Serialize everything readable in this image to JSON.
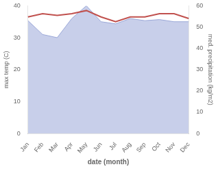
{
  "chart_data": {
    "type": "line",
    "categories": [
      "Jan",
      "Feb",
      "Mar",
      "Apr",
      "May",
      "Jun",
      "Jul",
      "Aug",
      "Sep",
      "Oct",
      "Nov",
      "Dec"
    ],
    "xlabel": "date (month)",
    "ylabel": "max temp (C)",
    "y2label": "med. precipitation (kg/m2)",
    "series": [
      {
        "type": "area",
        "color": "#9ba8d8",
        "axis": "y2",
        "values": [
          53.0,
          46.5,
          45.0,
          54.0,
          60.0,
          52.5,
          51.5,
          54.0,
          53.0,
          53.5,
          52.5,
          52.5
        ]
      },
      {
        "type": "line",
        "color": "#c0504d",
        "values": [
          36.5,
          37.5,
          37.0,
          37.5,
          38.5,
          36.5,
          35.0,
          36.5,
          36.5,
          37.5,
          37.5,
          36.0
        ]
      }
    ],
    "ylim": [
      0,
      40
    ],
    "yticks": [
      0,
      10,
      20,
      30,
      40
    ],
    "y2lim": [
      0,
      60
    ],
    "y2ticks": [
      0,
      10,
      20,
      30,
      40,
      50,
      60
    ],
    "grid": false
  }
}
